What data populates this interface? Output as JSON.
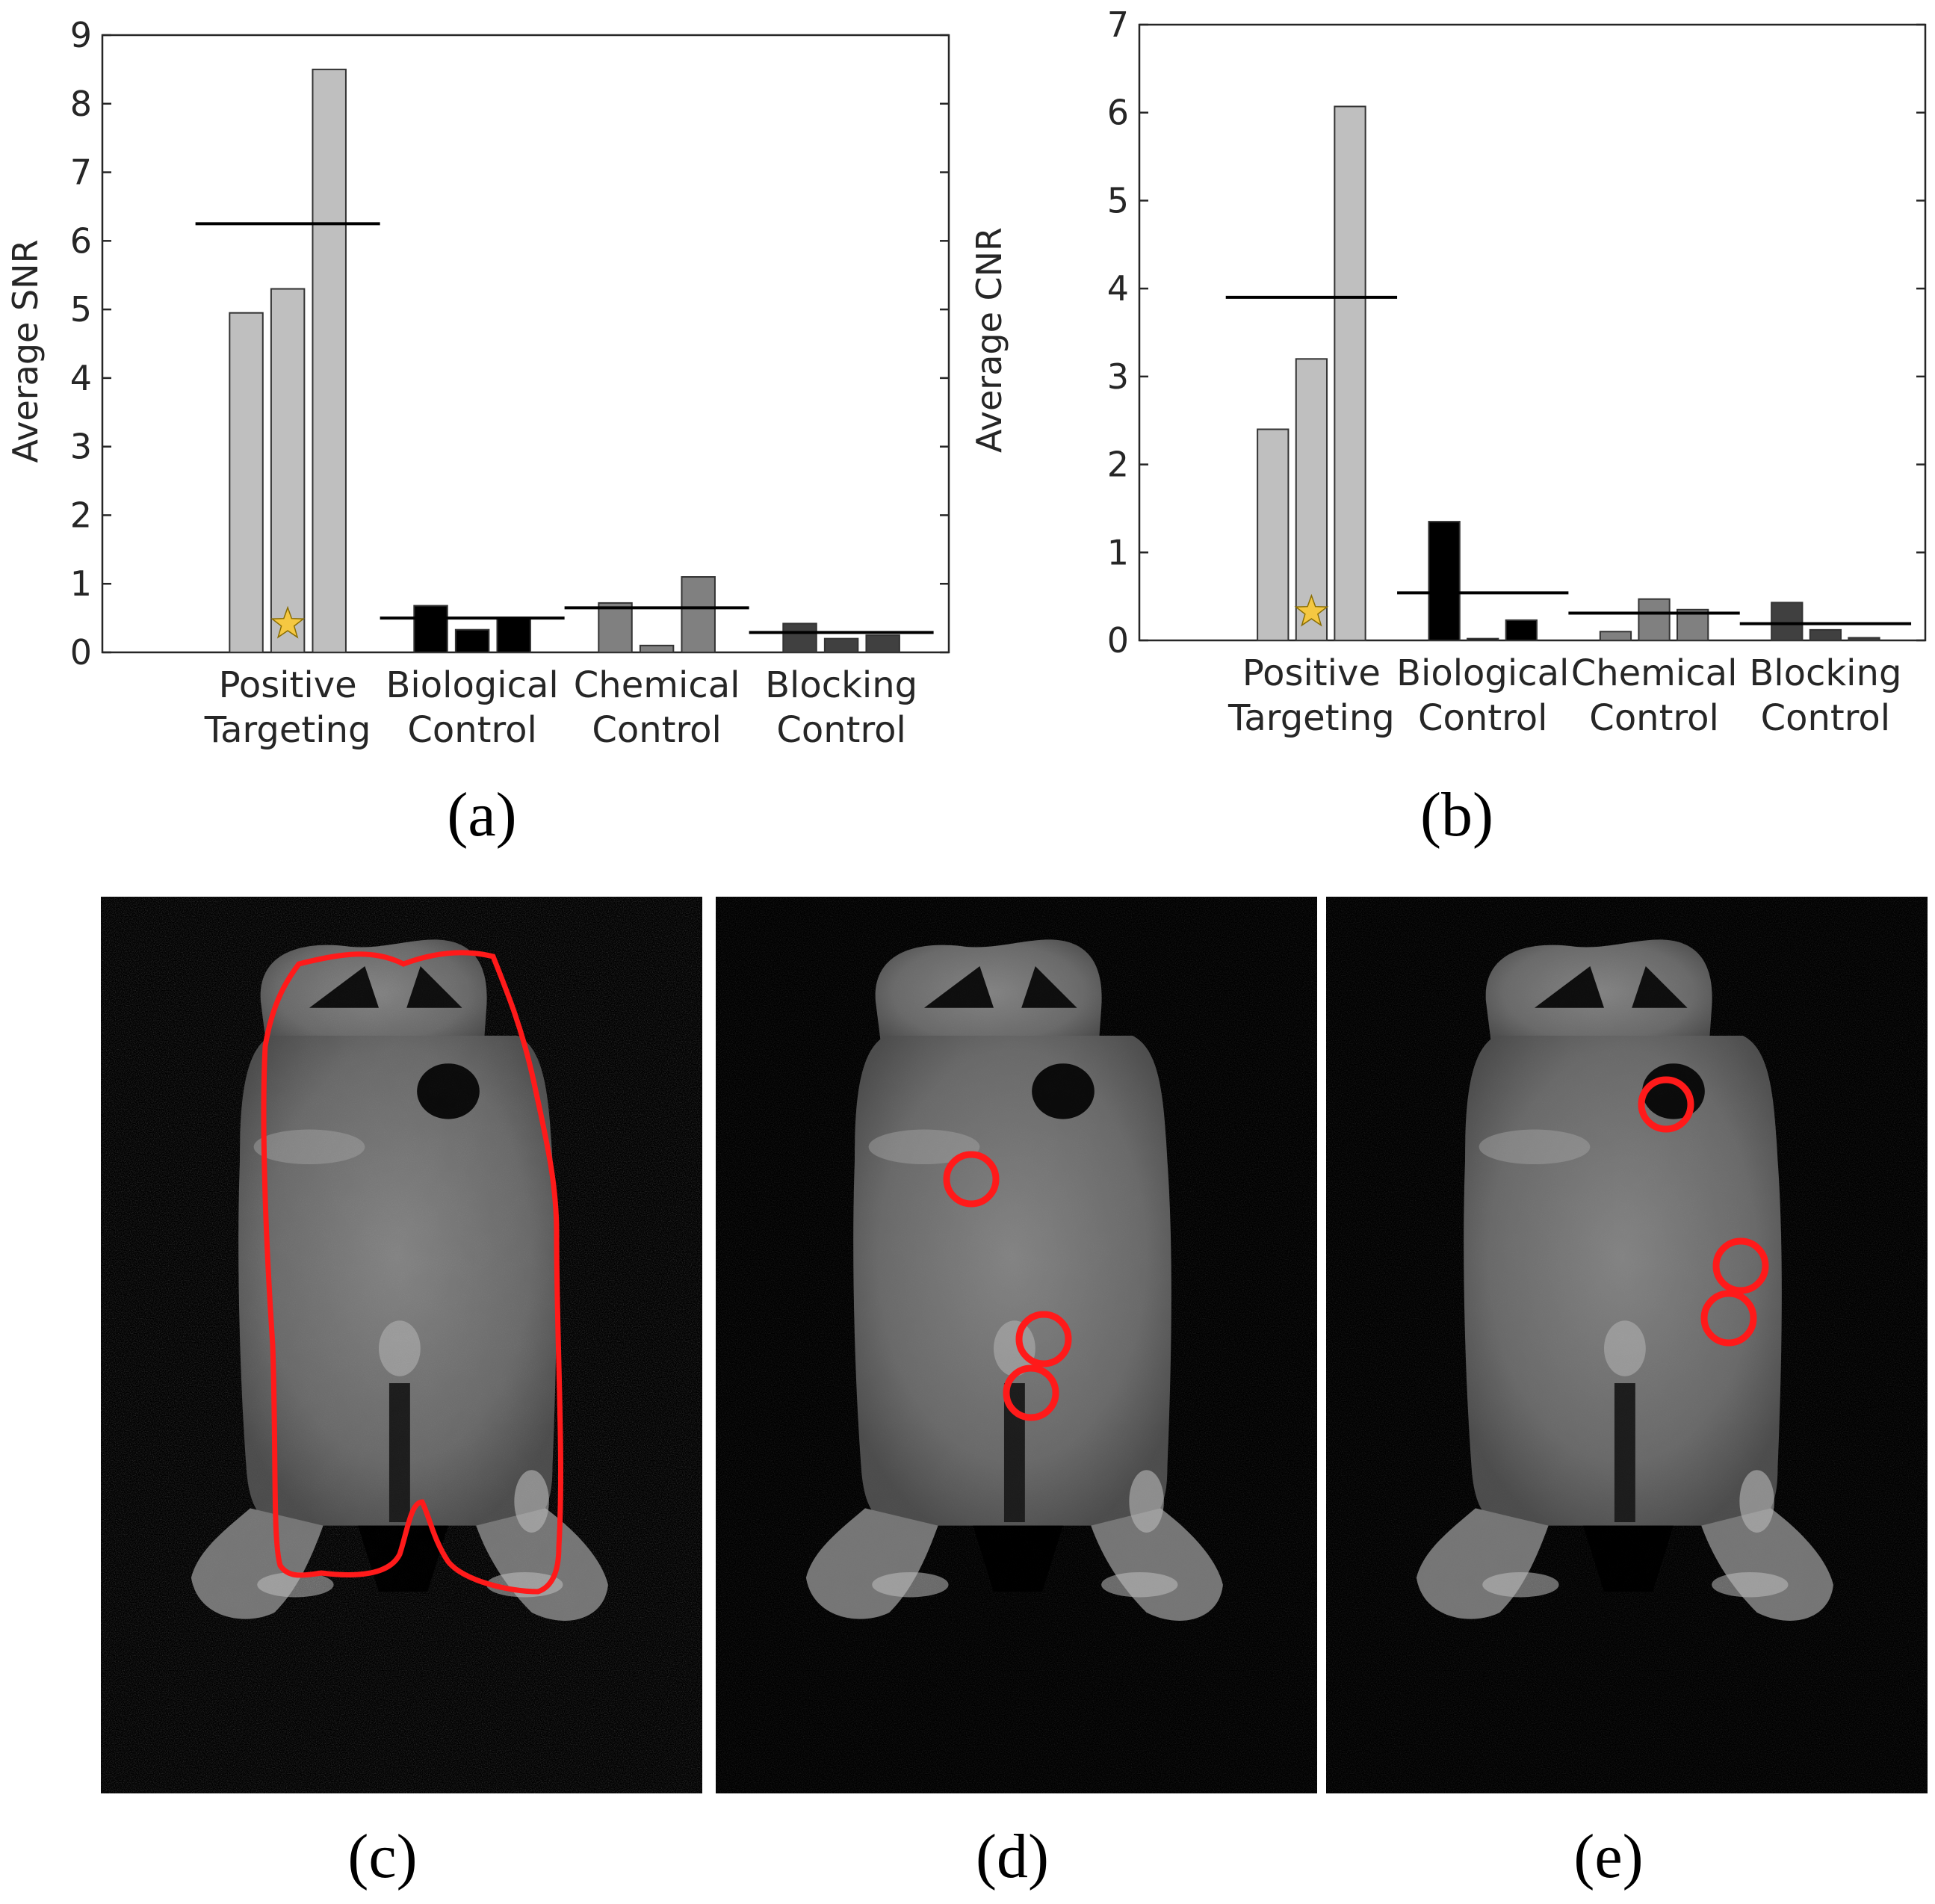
{
  "chart_data": [
    {
      "type": "bar",
      "panel_label": "(a)",
      "ylabel": "Average SNR",
      "ylim": [
        0,
        9
      ],
      "yticks": [
        "0",
        "1",
        "2",
        "3",
        "4",
        "5",
        "6",
        "7",
        "8",
        "9"
      ],
      "groups": [
        {
          "label": [
            "Positive",
            "Targeting"
          ],
          "values": [
            4.95,
            5.3,
            8.5
          ],
          "mean": 6.25,
          "color": "#bfbfbf",
          "star_bar": 1
        },
        {
          "label": [
            "Biological",
            "Control"
          ],
          "values": [
            0.68,
            0.33,
            0.5
          ],
          "mean": 0.5,
          "color": "#000000"
        },
        {
          "label": [
            "Chemical",
            "Control"
          ],
          "values": [
            0.72,
            0.1,
            1.1
          ],
          "mean": 0.65,
          "color": "#808080"
        },
        {
          "label": [
            "Blocking",
            "Control"
          ],
          "values": [
            0.42,
            0.2,
            0.25
          ],
          "mean": 0.29,
          "color": "#404040"
        }
      ],
      "grid": false
    },
    {
      "type": "bar",
      "panel_label": "(b)",
      "ylabel": "Average CNR",
      "ylim": [
        0,
        7
      ],
      "yticks": [
        "0",
        "1",
        "2",
        "3",
        "4",
        "5",
        "6",
        "7"
      ],
      "groups": [
        {
          "label": [
            "Positive",
            "Targeting"
          ],
          "values": [
            2.4,
            3.2,
            6.07
          ],
          "mean": 3.9,
          "color": "#bfbfbf",
          "star_bar": 1
        },
        {
          "label": [
            "Biological",
            "Control"
          ],
          "values": [
            1.35,
            0.02,
            0.23
          ],
          "mean": 0.54,
          "color": "#000000"
        },
        {
          "label": [
            "Chemical",
            "Control"
          ],
          "values": [
            0.1,
            0.47,
            0.35
          ],
          "mean": 0.31,
          "color": "#808080"
        },
        {
          "label": [
            "Blocking",
            "Control"
          ],
          "values": [
            0.43,
            0.12,
            0.03
          ],
          "mean": 0.19,
          "color": "#404040"
        }
      ],
      "grid": false
    }
  ],
  "images": [
    {
      "panel_label": "(c)",
      "overlay": "body outline"
    },
    {
      "panel_label": "(d)",
      "overlay": "three circular ROIs"
    },
    {
      "panel_label": "(e)",
      "overlay": "three circular ROIs"
    }
  ],
  "colors": {
    "roi": "#ff1a1a",
    "star": "#f5c842"
  }
}
